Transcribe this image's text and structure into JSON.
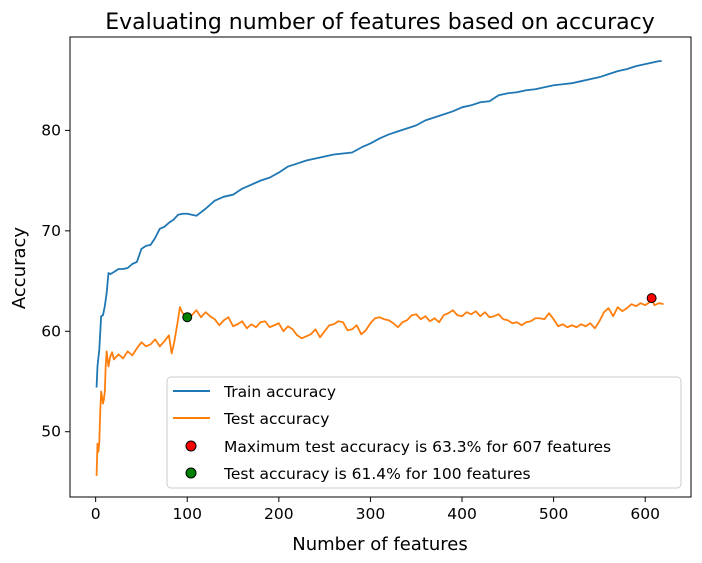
{
  "chart_data": {
    "type": "line",
    "title": "Evaluating number of features based on accuracy",
    "xlabel": "Number of features",
    "ylabel": "Accuracy",
    "xlim": [
      -28,
      650
    ],
    "ylim": [
      43.5,
      89.3
    ],
    "xticks": [
      0,
      100,
      200,
      300,
      400,
      500,
      600
    ],
    "yticks": [
      50,
      60,
      70,
      80
    ],
    "grid": false,
    "legend_position": "lower-right",
    "series": [
      {
        "name": "Train accuracy",
        "color": "#1f77b4",
        "points": [
          [
            1,
            54.4
          ],
          [
            2,
            56.5
          ],
          [
            4,
            58.2
          ],
          [
            6,
            61.5
          ],
          [
            8,
            61.6
          ],
          [
            10,
            62.5
          ],
          [
            12,
            63.8
          ],
          [
            14,
            65.8
          ],
          [
            16,
            65.7
          ],
          [
            20,
            65.9
          ],
          [
            25,
            66.2
          ],
          [
            30,
            66.2
          ],
          [
            35,
            66.3
          ],
          [
            40,
            66.7
          ],
          [
            45,
            66.9
          ],
          [
            50,
            68.2
          ],
          [
            55,
            68.5
          ],
          [
            60,
            68.6
          ],
          [
            65,
            69.3
          ],
          [
            70,
            70.2
          ],
          [
            75,
            70.4
          ],
          [
            80,
            70.8
          ],
          [
            85,
            71.1
          ],
          [
            90,
            71.6
          ],
          [
            95,
            71.7
          ],
          [
            100,
            71.7
          ],
          [
            110,
            71.5
          ],
          [
            120,
            72.2
          ],
          [
            130,
            73.0
          ],
          [
            140,
            73.4
          ],
          [
            150,
            73.6
          ],
          [
            160,
            74.2
          ],
          [
            170,
            74.6
          ],
          [
            180,
            75.0
          ],
          [
            190,
            75.3
          ],
          [
            200,
            75.8
          ],
          [
            210,
            76.4
          ],
          [
            220,
            76.7
          ],
          [
            230,
            77.0
          ],
          [
            240,
            77.2
          ],
          [
            250,
            77.4
          ],
          [
            260,
            77.6
          ],
          [
            270,
            77.7
          ],
          [
            280,
            77.8
          ],
          [
            290,
            78.3
          ],
          [
            300,
            78.7
          ],
          [
            310,
            79.2
          ],
          [
            320,
            79.6
          ],
          [
            330,
            79.9
          ],
          [
            340,
            80.2
          ],
          [
            350,
            80.5
          ],
          [
            360,
            81.0
          ],
          [
            370,
            81.3
          ],
          [
            380,
            81.6
          ],
          [
            390,
            81.9
          ],
          [
            400,
            82.3
          ],
          [
            410,
            82.5
          ],
          [
            420,
            82.8
          ],
          [
            430,
            82.9
          ],
          [
            440,
            83.5
          ],
          [
            450,
            83.7
          ],
          [
            460,
            83.8
          ],
          [
            470,
            84.0
          ],
          [
            480,
            84.1
          ],
          [
            490,
            84.3
          ],
          [
            500,
            84.5
          ],
          [
            510,
            84.6
          ],
          [
            520,
            84.7
          ],
          [
            530,
            84.9
          ],
          [
            540,
            85.1
          ],
          [
            550,
            85.3
          ],
          [
            560,
            85.6
          ],
          [
            570,
            85.9
          ],
          [
            580,
            86.1
          ],
          [
            590,
            86.4
          ],
          [
            600,
            86.6
          ],
          [
            610,
            86.8
          ],
          [
            615,
            86.9
          ],
          [
            618,
            86.9
          ]
        ]
      },
      {
        "name": "Test accuracy",
        "color": "#ff7f0e",
        "points": [
          [
            1,
            45.6
          ],
          [
            2,
            48.8
          ],
          [
            3,
            48.0
          ],
          [
            4,
            49.0
          ],
          [
            5,
            52.0
          ],
          [
            6,
            54.0
          ],
          [
            7,
            53.5
          ],
          [
            8,
            52.8
          ],
          [
            9,
            53.2
          ],
          [
            10,
            54.0
          ],
          [
            11,
            56.6
          ],
          [
            12,
            58.0
          ],
          [
            14,
            56.5
          ],
          [
            16,
            57.5
          ],
          [
            18,
            57.9
          ],
          [
            20,
            57.2
          ],
          [
            25,
            57.7
          ],
          [
            30,
            57.3
          ],
          [
            35,
            58.0
          ],
          [
            40,
            57.6
          ],
          [
            45,
            58.3
          ],
          [
            50,
            58.9
          ],
          [
            55,
            58.5
          ],
          [
            60,
            58.7
          ],
          [
            65,
            59.2
          ],
          [
            70,
            58.5
          ],
          [
            75,
            59.0
          ],
          [
            80,
            59.6
          ],
          [
            83,
            57.8
          ],
          [
            86,
            59.0
          ],
          [
            90,
            61.2
          ],
          [
            92,
            62.4
          ],
          [
            95,
            61.8
          ],
          [
            98,
            61.5
          ],
          [
            100,
            61.4
          ],
          [
            105,
            61.6
          ],
          [
            110,
            62.1
          ],
          [
            115,
            61.4
          ],
          [
            120,
            61.9
          ],
          [
            125,
            61.5
          ],
          [
            130,
            61.2
          ],
          [
            135,
            60.6
          ],
          [
            140,
            61.1
          ],
          [
            145,
            61.4
          ],
          [
            150,
            60.5
          ],
          [
            155,
            60.7
          ],
          [
            160,
            61.0
          ],
          [
            165,
            60.3
          ],
          [
            170,
            60.7
          ],
          [
            175,
            60.4
          ],
          [
            180,
            60.9
          ],
          [
            185,
            61.0
          ],
          [
            190,
            60.4
          ],
          [
            195,
            60.6
          ],
          [
            200,
            60.8
          ],
          [
            205,
            60.0
          ],
          [
            210,
            60.5
          ],
          [
            215,
            60.2
          ],
          [
            220,
            59.6
          ],
          [
            225,
            59.3
          ],
          [
            230,
            59.5
          ],
          [
            235,
            59.7
          ],
          [
            240,
            60.2
          ],
          [
            245,
            59.4
          ],
          [
            250,
            60.0
          ],
          [
            255,
            60.6
          ],
          [
            260,
            60.7
          ],
          [
            265,
            61.0
          ],
          [
            270,
            60.9
          ],
          [
            275,
            60.1
          ],
          [
            280,
            60.2
          ],
          [
            285,
            60.6
          ],
          [
            290,
            59.7
          ],
          [
            295,
            60.1
          ],
          [
            300,
            60.8
          ],
          [
            305,
            61.3
          ],
          [
            310,
            61.4
          ],
          [
            315,
            61.2
          ],
          [
            320,
            61.1
          ],
          [
            325,
            60.8
          ],
          [
            330,
            60.4
          ],
          [
            335,
            60.9
          ],
          [
            340,
            61.1
          ],
          [
            345,
            61.6
          ],
          [
            350,
            61.7
          ],
          [
            355,
            61.2
          ],
          [
            360,
            61.5
          ],
          [
            365,
            61.0
          ],
          [
            370,
            61.3
          ],
          [
            375,
            60.9
          ],
          [
            380,
            61.6
          ],
          [
            385,
            61.8
          ],
          [
            390,
            62.1
          ],
          [
            395,
            61.6
          ],
          [
            400,
            61.5
          ],
          [
            405,
            61.9
          ],
          [
            410,
            61.7
          ],
          [
            415,
            62.0
          ],
          [
            420,
            61.5
          ],
          [
            425,
            61.9
          ],
          [
            430,
            61.4
          ],
          [
            435,
            61.5
          ],
          [
            440,
            61.7
          ],
          [
            445,
            61.2
          ],
          [
            450,
            61.1
          ],
          [
            455,
            60.8
          ],
          [
            460,
            60.9
          ],
          [
            465,
            60.6
          ],
          [
            470,
            60.9
          ],
          [
            475,
            61.0
          ],
          [
            480,
            61.3
          ],
          [
            485,
            61.3
          ],
          [
            490,
            61.2
          ],
          [
            495,
            61.8
          ],
          [
            500,
            61.2
          ],
          [
            505,
            60.5
          ],
          [
            510,
            60.7
          ],
          [
            515,
            60.4
          ],
          [
            520,
            60.6
          ],
          [
            525,
            60.4
          ],
          [
            530,
            60.7
          ],
          [
            535,
            60.5
          ],
          [
            540,
            60.8
          ],
          [
            545,
            60.3
          ],
          [
            550,
            61.0
          ],
          [
            555,
            61.9
          ],
          [
            560,
            62.3
          ],
          [
            565,
            61.5
          ],
          [
            570,
            62.4
          ],
          [
            575,
            62.0
          ],
          [
            580,
            62.3
          ],
          [
            585,
            62.7
          ],
          [
            590,
            62.5
          ],
          [
            595,
            62.8
          ],
          [
            600,
            62.6
          ],
          [
            605,
            62.9
          ],
          [
            607,
            63.3
          ],
          [
            610,
            62.6
          ],
          [
            615,
            62.8
          ],
          [
            620,
            62.7
          ]
        ]
      },
      {
        "name": "Maximum test accuracy is 63.3% for 607 features",
        "type": "scatter",
        "color": "#ff0000",
        "points": [
          [
            607,
            63.3
          ]
        ]
      },
      {
        "name": "Test accuracy is 61.4% for 100 features",
        "type": "scatter",
        "color": "#008000",
        "points": [
          [
            100,
            61.4
          ]
        ]
      }
    ]
  }
}
